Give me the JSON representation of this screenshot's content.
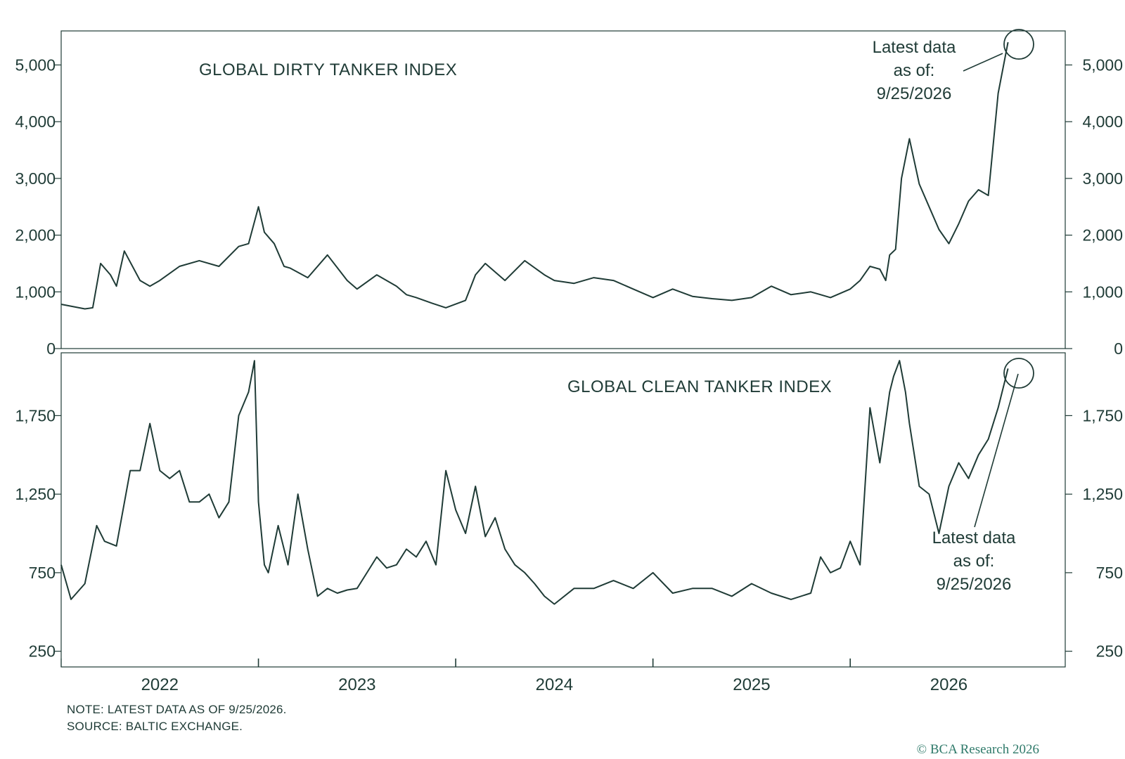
{
  "chart_data": [
    {
      "type": "line",
      "title": "GLOBAL DIRTY TANKER INDEX",
      "xlabel": "",
      "ylabel": "",
      "ylim": [
        0,
        5600
      ],
      "yticks": [
        "0",
        "1,000",
        "2,000",
        "3,000",
        "4,000",
        "5,000"
      ],
      "ytick_values": [
        0,
        1000,
        2000,
        3000,
        4000,
        5000
      ],
      "annotation": {
        "line1": "Latest data",
        "line2": "as of:",
        "line3": "9/25/2026"
      },
      "x": [
        2021.5,
        2021.62,
        2021.66,
        2021.7,
        2021.75,
        2021.78,
        2021.82,
        2021.9,
        2021.95,
        2022.0,
        2022.1,
        2022.2,
        2022.3,
        2022.4,
        2022.45,
        2022.5,
        2022.53,
        2022.58,
        2022.63,
        2022.66,
        2022.75,
        2022.85,
        2022.95,
        2023.0,
        2023.1,
        2023.2,
        2023.25,
        2023.3,
        2023.38,
        2023.45,
        2023.55,
        2023.6,
        2023.65,
        2023.75,
        2023.85,
        2023.95,
        2024.0,
        2024.1,
        2024.2,
        2024.3,
        2024.4,
        2024.5,
        2024.6,
        2024.7,
        2024.8,
        2024.9,
        2025.0,
        2025.1,
        2025.2,
        2025.3,
        2025.35,
        2025.4,
        2025.5,
        2025.55,
        2025.6,
        2025.65,
        2025.68,
        2025.7,
        2025.73,
        2025.76,
        2025.8,
        2025.85,
        2025.9,
        2025.95,
        2026.0,
        2026.05,
        2026.1,
        2026.15,
        2026.2,
        2026.25,
        2026.3
      ],
      "series": [
        {
          "values": [
            780,
            700,
            720,
            1500,
            1300,
            1100,
            1720,
            1200,
            1100,
            1200,
            1450,
            1550,
            1450,
            1800,
            1850,
            2500,
            2050,
            1850,
            1450,
            1420,
            1250,
            1650,
            1200,
            1050,
            1300,
            1100,
            950,
            900,
            800,
            720,
            850,
            1300,
            1500,
            1200,
            1550,
            1300,
            1200,
            1150,
            1250,
            1200,
            1050,
            900,
            1050,
            920,
            880,
            850,
            900,
            1100,
            950,
            1000,
            950,
            900,
            1050,
            1200,
            1450,
            1400,
            1200,
            1650,
            1750,
            3000,
            3700,
            2900,
            2500,
            2100,
            1850,
            2200,
            2600,
            2800,
            2700,
            4500,
            5400
          ]
        }
      ]
    },
    {
      "type": "line",
      "title": "GLOBAL CLEAN TANKER INDEX",
      "xlabel": "",
      "ylabel": "",
      "ylim": [
        150,
        2150
      ],
      "yticks": [
        "250",
        "750",
        "1,250",
        "1,750"
      ],
      "ytick_values": [
        250,
        750,
        1250,
        1750
      ],
      "annotation": {
        "line1": "Latest data",
        "line2": "as of:",
        "line3": "9/25/2026"
      },
      "xticks": [
        "2022",
        "2023",
        "2024",
        "2025",
        "2026"
      ],
      "xtick_values": [
        2022,
        2023,
        2024,
        2025,
        2026
      ],
      "x": [
        2021.5,
        2021.55,
        2021.62,
        2021.68,
        2021.72,
        2021.78,
        2021.85,
        2021.9,
        2021.95,
        2022.0,
        2022.05,
        2022.1,
        2022.15,
        2022.2,
        2022.25,
        2022.3,
        2022.35,
        2022.4,
        2022.45,
        2022.48,
        2022.5,
        2022.53,
        2022.55,
        2022.6,
        2022.65,
        2022.7,
        2022.75,
        2022.8,
        2022.85,
        2022.9,
        2022.95,
        2023.0,
        2023.05,
        2023.1,
        2023.15,
        2023.2,
        2023.25,
        2023.3,
        2023.35,
        2023.4,
        2023.45,
        2023.5,
        2023.55,
        2023.6,
        2023.65,
        2023.7,
        2023.75,
        2023.8,
        2023.85,
        2023.9,
        2023.95,
        2024.0,
        2024.1,
        2024.2,
        2024.3,
        2024.4,
        2024.5,
        2024.6,
        2024.7,
        2024.8,
        2024.9,
        2025.0,
        2025.1,
        2025.2,
        2025.3,
        2025.35,
        2025.4,
        2025.45,
        2025.5,
        2025.55,
        2025.6,
        2025.65,
        2025.7,
        2025.72,
        2025.75,
        2025.78,
        2025.8,
        2025.85,
        2025.9,
        2025.95,
        2026.0,
        2026.05,
        2026.1,
        2026.15,
        2026.2,
        2026.25,
        2026.3
      ],
      "series": [
        {
          "values": [
            800,
            580,
            680,
            1050,
            950,
            920,
            1400,
            1400,
            1700,
            1400,
            1350,
            1400,
            1200,
            1200,
            1250,
            1100,
            1200,
            1750,
            1900,
            2100,
            1200,
            800,
            750,
            1050,
            800,
            1250,
            900,
            600,
            650,
            620,
            640,
            650,
            750,
            850,
            780,
            800,
            900,
            850,
            950,
            800,
            1400,
            1150,
            1000,
            1300,
            980,
            1100,
            900,
            800,
            750,
            680,
            600,
            550,
            650,
            650,
            700,
            650,
            750,
            620,
            650,
            650,
            600,
            680,
            620,
            580,
            620,
            850,
            750,
            780,
            950,
            800,
            1800,
            1450,
            1900,
            2000,
            2100,
            1900,
            1700,
            1300,
            1250,
            1000,
            1300,
            1450,
            1350,
            1500,
            1600,
            1800,
            2050
          ]
        }
      ]
    }
  ],
  "notes": {
    "line1": "NOTE: LATEST DATA AS OF 9/25/2026.",
    "line2": "SOURCE: BALTIC EXCHANGE."
  },
  "copyright": "© BCA Research 2026",
  "colors": {
    "line": "#1f3b36",
    "text": "#1f3b36",
    "brand": "#2f7a6a"
  }
}
